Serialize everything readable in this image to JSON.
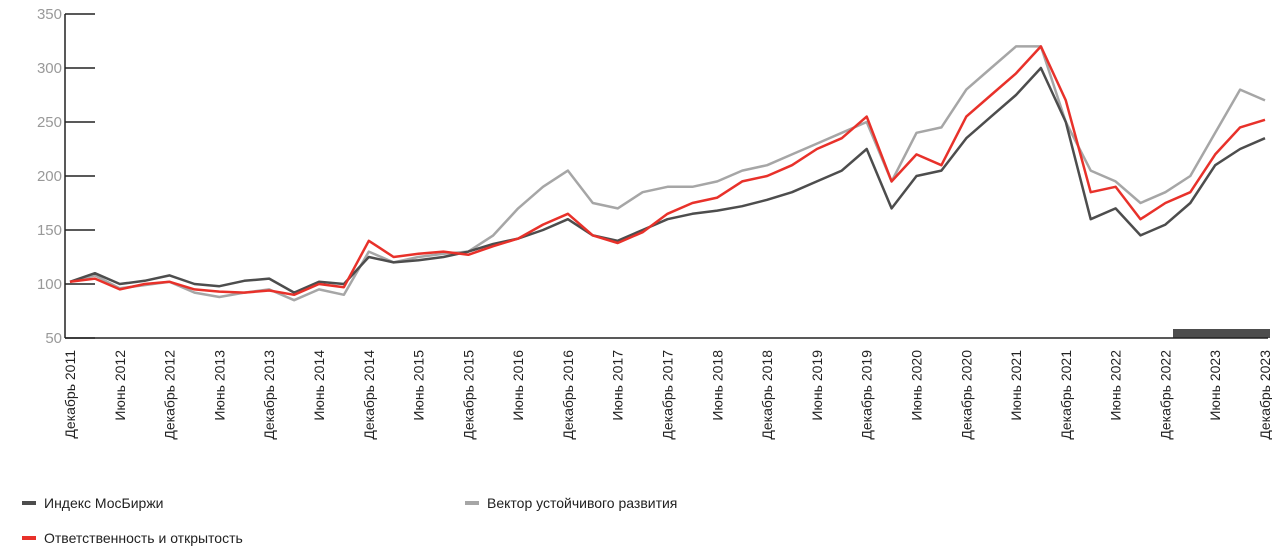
{
  "chart_data": {
    "type": "line",
    "categories": [
      "Декабрь 2011",
      null,
      "Июнь 2012",
      null,
      "Декабрь 2012",
      null,
      "Июнь 2013",
      null,
      "Декабрь 2013",
      null,
      "Июнь 2014",
      null,
      "Декабрь 2014",
      null,
      "Июнь 2015",
      null,
      "Декабрь 2015",
      null,
      "Июнь 2016",
      null,
      "Декабрь 2016",
      null,
      "Июнь 2017",
      null,
      "Декабрь 2017",
      null,
      "Июнь 2018",
      null,
      "Декабрь 2018",
      null,
      "Июнь 2019",
      null,
      "Декабрь 2019",
      null,
      "Июнь 2020",
      null,
      "Декабрь 2020",
      null,
      "Июнь 2021",
      null,
      "Декабрь 2021",
      null,
      "Июнь 2022",
      null,
      "Декабрь 2022",
      null,
      "Июнь 2023",
      null,
      "Декабрь 2023"
    ],
    "series": [
      {
        "name": "Индекс МосБиржи",
        "color": "#4d4d4d",
        "values": [
          102,
          110,
          100,
          103,
          108,
          100,
          98,
          103,
          105,
          92,
          102,
          100,
          125,
          120,
          122,
          125,
          130,
          137,
          142,
          150,
          160,
          145,
          140,
          150,
          160,
          165,
          168,
          172,
          178,
          185,
          195,
          205,
          225,
          170,
          200,
          205,
          235,
          255,
          275,
          300,
          250,
          160,
          170,
          145,
          155,
          175,
          210,
          225,
          235
        ]
      },
      {
        "name": "Вектор устойчивого развития",
        "color": "#a6a6a6",
        "values": [
          102,
          108,
          96,
          99,
          102,
          92,
          88,
          92,
          95,
          85,
          95,
          90,
          130,
          120,
          125,
          128,
          130,
          145,
          170,
          190,
          205,
          175,
          170,
          185,
          190,
          190,
          195,
          205,
          210,
          220,
          230,
          240,
          250,
          195,
          240,
          245,
          280,
          300,
          320,
          320,
          250,
          205,
          195,
          175,
          185,
          200,
          240,
          280,
          270
        ]
      },
      {
        "name": "Ответственность и открытость",
        "color": "#e8312a",
        "values": [
          102,
          105,
          95,
          100,
          102,
          95,
          93,
          92,
          94,
          90,
          100,
          97,
          140,
          125,
          128,
          130,
          127,
          135,
          142,
          155,
          165,
          145,
          138,
          148,
          165,
          175,
          180,
          195,
          200,
          210,
          225,
          235,
          255,
          195,
          220,
          210,
          255,
          275,
          295,
          320,
          270,
          185,
          190,
          160,
          175,
          185,
          220,
          245,
          252
        ]
      }
    ],
    "ylim": [
      50,
      350
    ],
    "yticks": [
      50,
      100,
      150,
      200,
      250,
      300,
      350
    ]
  }
}
